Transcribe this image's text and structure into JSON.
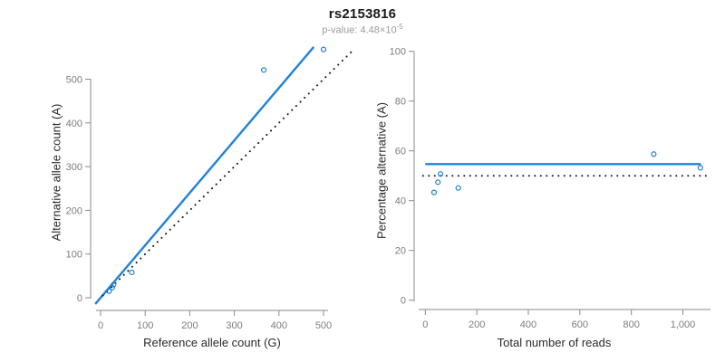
{
  "title": "rs2153816",
  "subtitle": {
    "prefix": "p-value: ",
    "coefficient": "4.48",
    "times_base": "×10",
    "exponent": "-5"
  },
  "colors": {
    "accent_blue": "#2182d8",
    "dotted_black": "#1a1a1a",
    "axis_gray": "#8a8a8a",
    "tick_label_gray": "#7d7d7d"
  },
  "chart_data": [
    {
      "type": "scatter",
      "panel": "allele-counts",
      "xlabel": "Reference allele count (G)",
      "ylabel": "Alternative allele count (A)",
      "xlim": [
        0,
        500
      ],
      "ylim": [
        0,
        500
      ],
      "xticks": [
        0,
        100,
        200,
        300,
        400,
        500
      ],
      "yticks": [
        0,
        100,
        200,
        300,
        400,
        500
      ],
      "grid": false,
      "points": [
        [
          19,
          15
        ],
        [
          26,
          23
        ],
        [
          29,
          30
        ],
        [
          70,
          58
        ],
        [
          366,
          521
        ],
        [
          500,
          568
        ]
      ],
      "lines": [
        {
          "name": "fitted-allelic-ratio-line",
          "style": "solid",
          "slope": 1.2,
          "intercept": 0,
          "x_range": [
            -12,
            478
          ]
        },
        {
          "name": "identity-line",
          "style": "dotted",
          "slope": 1,
          "intercept": 0,
          "x_range": [
            5,
            562
          ]
        }
      ]
    },
    {
      "type": "scatter",
      "panel": "percentage-alternative",
      "xlabel": "Total number of reads",
      "ylabel": "Percentage alternative (A)",
      "xlim": [
        0,
        1000
      ],
      "ylim": [
        0,
        100
      ],
      "xticks": [
        0,
        200,
        400,
        600,
        800,
        1000
      ],
      "yticks": [
        0,
        20,
        40,
        60,
        80,
        100
      ],
      "grid": false,
      "points": [
        [
          34,
          43.3
        ],
        [
          49,
          47.4
        ],
        [
          59,
          50.7
        ],
        [
          128,
          45.1
        ],
        [
          887,
          58.7
        ],
        [
          1068,
          53.2
        ]
      ],
      "lines": [
        {
          "name": "mean-percentage-line",
          "style": "solid",
          "slope": 0,
          "intercept": 54.7,
          "x_range": [
            0,
            1070
          ]
        },
        {
          "name": "expected-50-percent-line",
          "style": "dotted",
          "slope": 0,
          "intercept": 50,
          "x_range": [
            -9,
            1100
          ]
        }
      ]
    }
  ]
}
